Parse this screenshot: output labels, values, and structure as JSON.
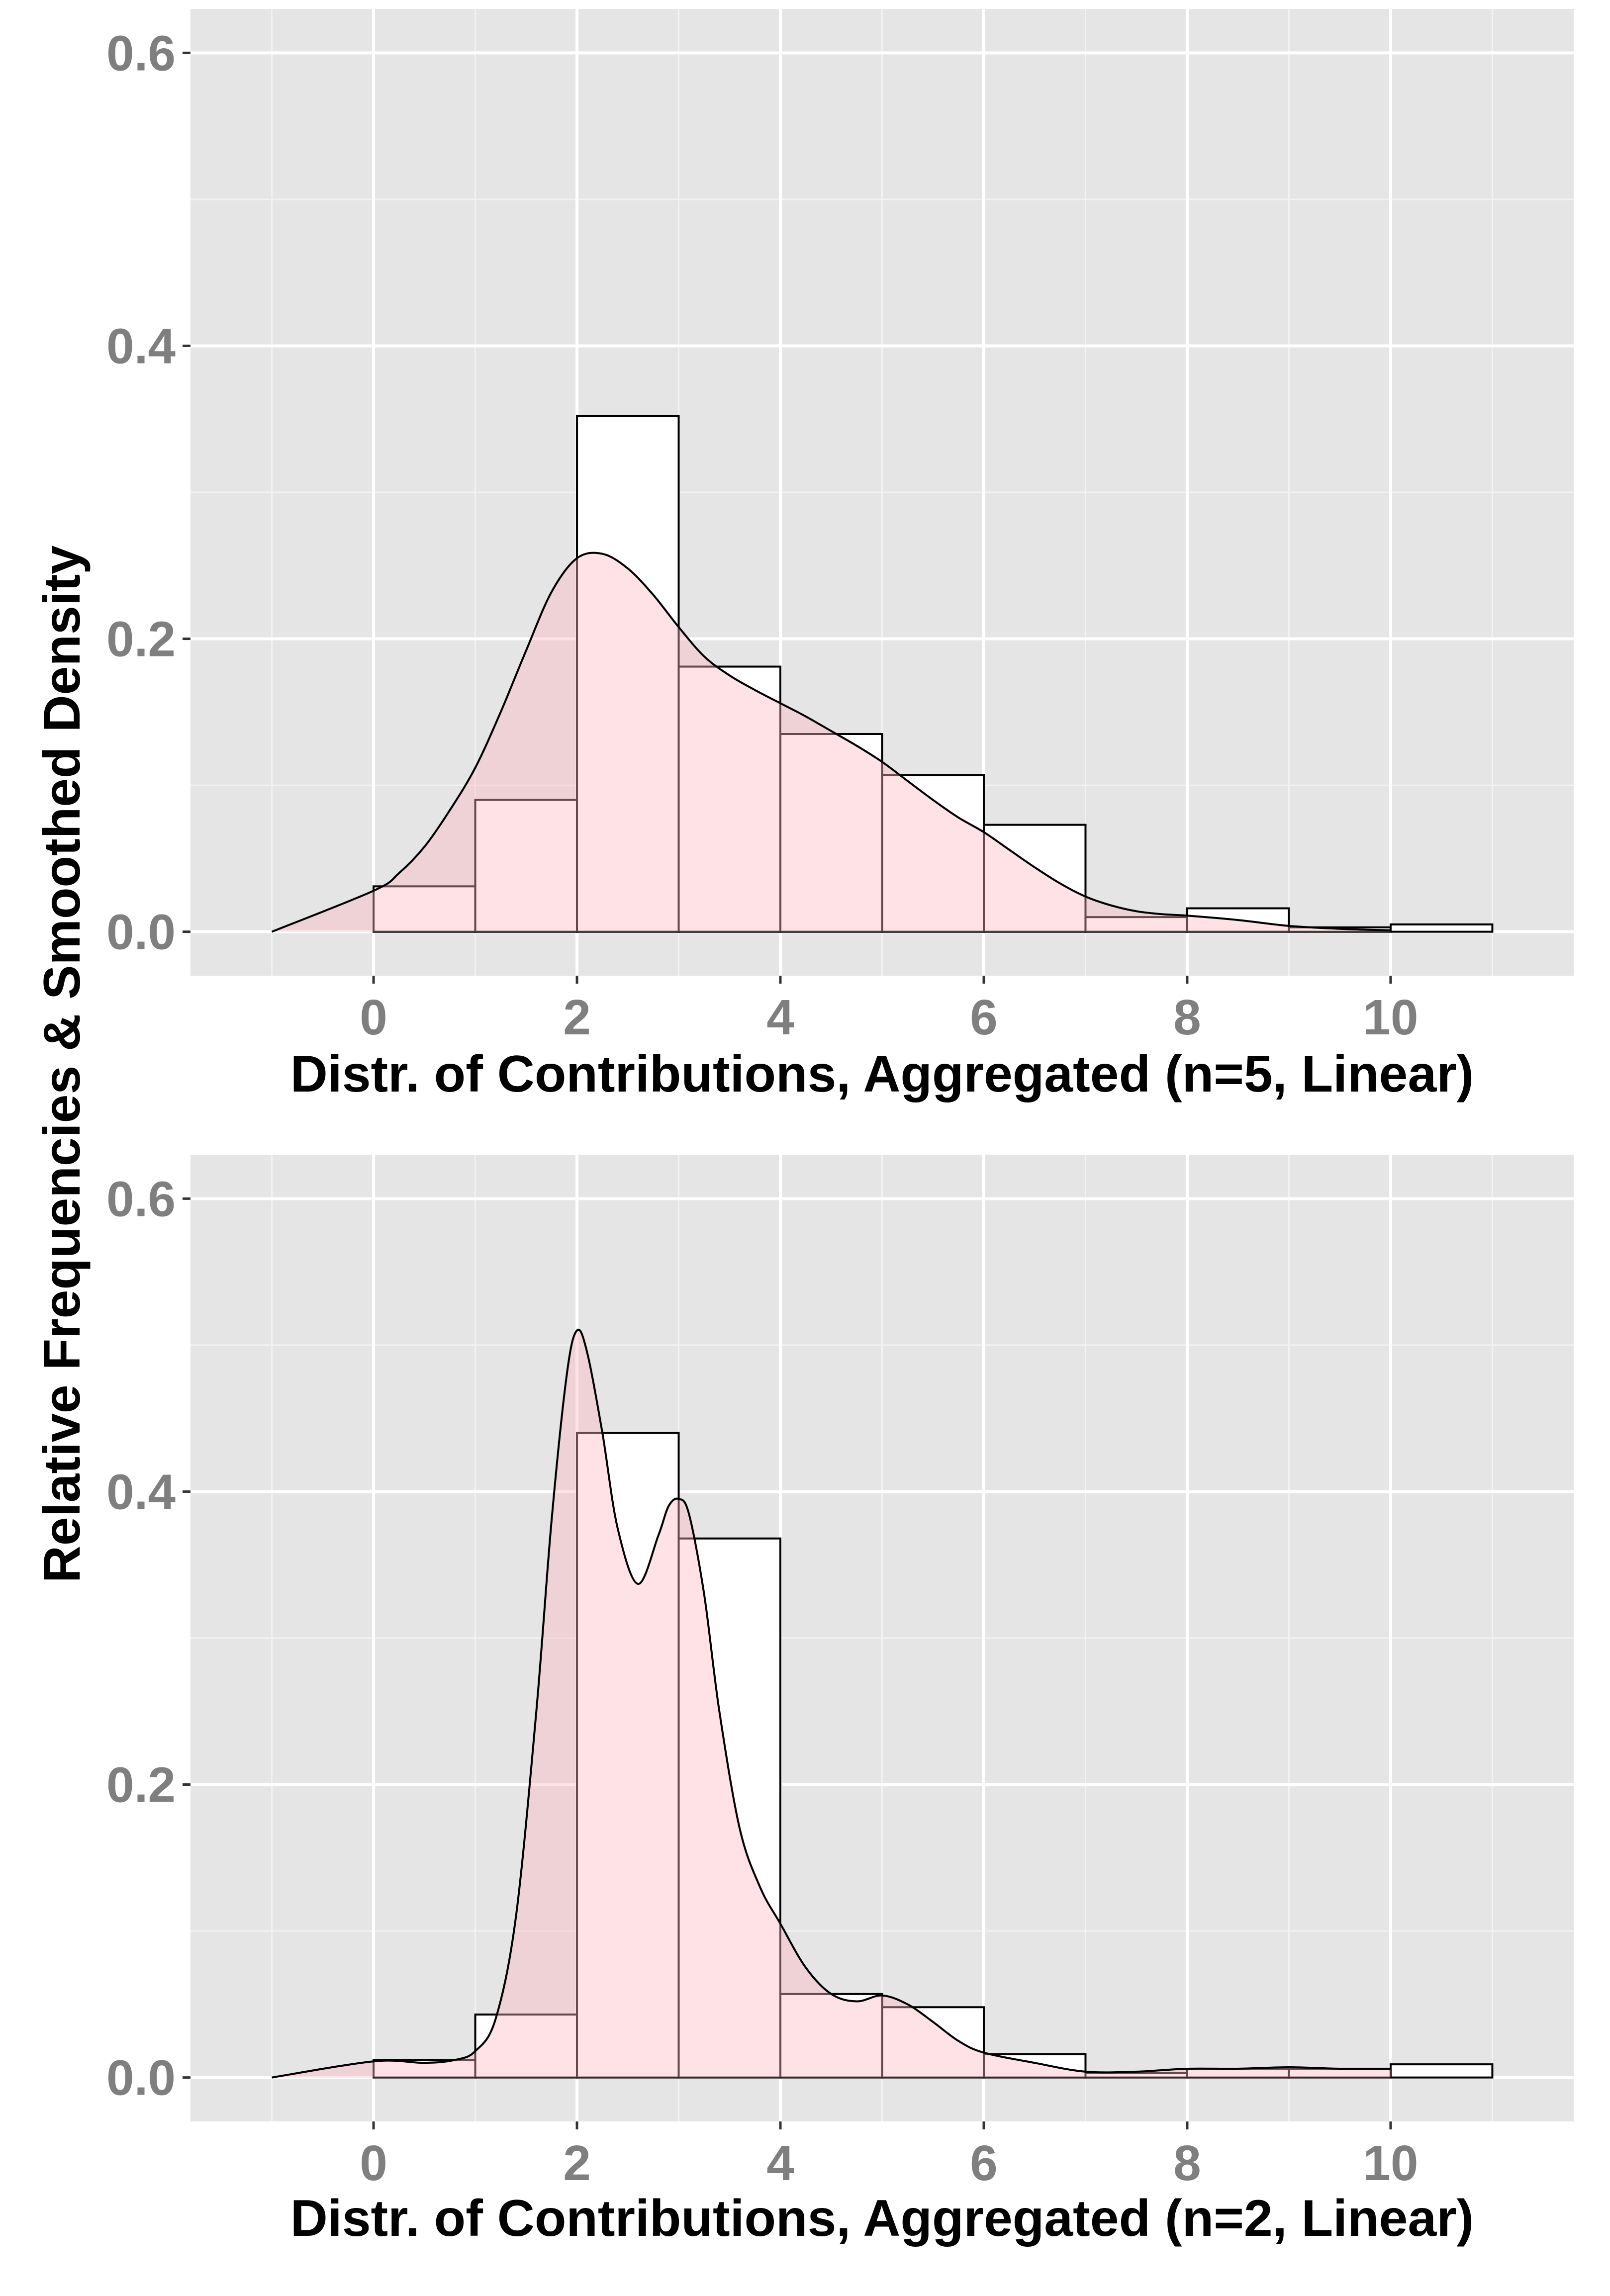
{
  "figure": {
    "shared_ylabel": "Relative Frequencies & Smoothed Density"
  },
  "colors": {
    "panel_background": "#e5e5e5",
    "grid_major": "#ffffff",
    "grid_minor": "#f2f2f2",
    "bar_fill": "#ffffff",
    "bar_stroke": "#000000",
    "density_fill": "#ffb6c1",
    "density_stroke": "#000000",
    "tick_label": "#7f7f7f",
    "axis_title": "#000000"
  },
  "chart_data": [
    {
      "type": "histogram+density",
      "xlabel": "Distr. of Contributions, Aggregated (n=5, Linear)",
      "ylabel": "Relative Frequencies & Smoothed Density",
      "xlim": [
        -1.8,
        11.8
      ],
      "ylim": [
        -0.03,
        0.63
      ],
      "xticks": [
        0,
        2,
        4,
        6,
        8,
        10
      ],
      "xtick_labels": [
        "0",
        "2",
        "4",
        "6",
        "8",
        "10"
      ],
      "yticks": [
        0.0,
        0.2,
        0.4,
        0.6
      ],
      "ytick_labels": [
        "0.0",
        "0.2",
        "0.4",
        "0.6"
      ],
      "grid": true,
      "bins": [
        {
          "x0": 0,
          "x1": 1,
          "value": 0.031
        },
        {
          "x0": 1,
          "x1": 2,
          "value": 0.09
        },
        {
          "x0": 2,
          "x1": 3,
          "value": 0.352
        },
        {
          "x0": 3,
          "x1": 4,
          "value": 0.181
        },
        {
          "x0": 4,
          "x1": 5,
          "value": 0.135
        },
        {
          "x0": 5,
          "x1": 6,
          "value": 0.107
        },
        {
          "x0": 6,
          "x1": 7,
          "value": 0.073
        },
        {
          "x0": 7,
          "x1": 8,
          "value": 0.01
        },
        {
          "x0": 8,
          "x1": 9,
          "value": 0.016
        },
        {
          "x0": 9,
          "x1": 10,
          "value": 0.003
        },
        {
          "x0": 10,
          "x1": 11,
          "value": 0.005
        }
      ],
      "density": {
        "x": [
          -1,
          0,
          0.25,
          0.5,
          0.75,
          1.0,
          1.25,
          1.5,
          1.75,
          2.0,
          2.25,
          2.5,
          2.75,
          3.0,
          3.25,
          3.5,
          3.75,
          4.0,
          4.25,
          4.5,
          4.75,
          5.0,
          5.25,
          5.5,
          5.75,
          6.0,
          6.25,
          6.5,
          6.75,
          7.0,
          7.25,
          7.5,
          7.75,
          8.0,
          8.5,
          9.0,
          9.5,
          10.0
        ],
        "y": [
          0.0,
          0.028,
          0.04,
          0.058,
          0.083,
          0.112,
          0.15,
          0.192,
          0.232,
          0.255,
          0.258,
          0.248,
          0.23,
          0.208,
          0.188,
          0.175,
          0.165,
          0.156,
          0.147,
          0.137,
          0.127,
          0.116,
          0.103,
          0.09,
          0.078,
          0.068,
          0.056,
          0.044,
          0.033,
          0.024,
          0.018,
          0.014,
          0.012,
          0.011,
          0.008,
          0.004,
          0.002,
          0.001
        ]
      }
    },
    {
      "type": "histogram+density",
      "xlabel": "Distr. of Contributions, Aggregated (n=2, Linear)",
      "ylabel": "Relative Frequencies & Smoothed Density",
      "xlim": [
        -1.8,
        11.8
      ],
      "ylim": [
        -0.03,
        0.63
      ],
      "xticks": [
        0,
        2,
        4,
        6,
        8,
        10
      ],
      "xtick_labels": [
        "0",
        "2",
        "4",
        "6",
        "8",
        "10"
      ],
      "yticks": [
        0.0,
        0.2,
        0.4,
        0.6
      ],
      "ytick_labels": [
        "0.0",
        "0.2",
        "0.4",
        "0.6"
      ],
      "grid": true,
      "bins": [
        {
          "x0": 0,
          "x1": 1,
          "value": 0.012
        },
        {
          "x0": 1,
          "x1": 2,
          "value": 0.043
        },
        {
          "x0": 2,
          "x1": 3,
          "value": 0.44
        },
        {
          "x0": 3,
          "x1": 4,
          "value": 0.368
        },
        {
          "x0": 4,
          "x1": 5,
          "value": 0.057
        },
        {
          "x0": 5,
          "x1": 6,
          "value": 0.048
        },
        {
          "x0": 6,
          "x1": 7,
          "value": 0.016
        },
        {
          "x0": 7,
          "x1": 8,
          "value": 0.003
        },
        {
          "x0": 8,
          "x1": 9,
          "value": 0.006
        },
        {
          "x0": 9,
          "x1": 10,
          "value": 0.006
        },
        {
          "x0": 10,
          "x1": 11,
          "value": 0.009
        }
      ],
      "density": {
        "x": [
          -1,
          0,
          0.5,
          0.8,
          1.0,
          1.2,
          1.4,
          1.6,
          1.75,
          1.9,
          2.0,
          2.1,
          2.25,
          2.4,
          2.6,
          2.8,
          2.9,
          3.0,
          3.1,
          3.25,
          3.4,
          3.6,
          3.8,
          4.0,
          4.25,
          4.5,
          4.75,
          5.0,
          5.25,
          5.5,
          5.75,
          6.0,
          6.5,
          7.0,
          7.5,
          8.0,
          8.5,
          9.0,
          9.5,
          10.0
        ],
        "y": [
          0.0,
          0.011,
          0.01,
          0.012,
          0.018,
          0.04,
          0.11,
          0.25,
          0.38,
          0.48,
          0.51,
          0.495,
          0.44,
          0.375,
          0.337,
          0.37,
          0.39,
          0.395,
          0.385,
          0.33,
          0.25,
          0.17,
          0.13,
          0.105,
          0.075,
          0.057,
          0.052,
          0.056,
          0.05,
          0.038,
          0.025,
          0.017,
          0.01,
          0.004,
          0.004,
          0.006,
          0.006,
          0.007,
          0.006,
          0.006
        ]
      }
    }
  ]
}
